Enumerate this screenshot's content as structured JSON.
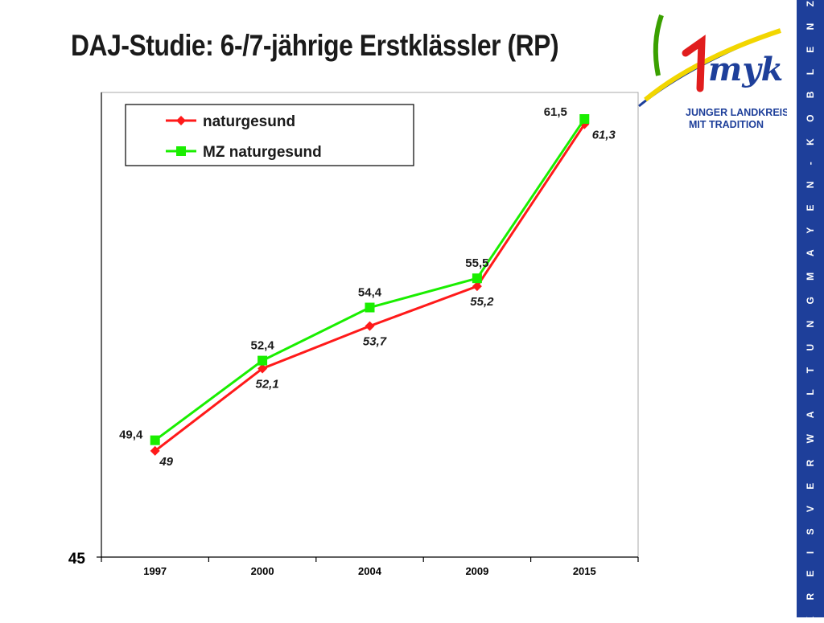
{
  "slide": {
    "title": "DAJ-Studie:  6-/7-jährige Erstklässler (RP)",
    "side_text": "K R E I S V E R W A L T U N G   M A Y E N - K O B L E N Z",
    "accent_color": "#1e3f9a"
  },
  "logo": {
    "line1": "JUNGER LANDKREIS",
    "line2": "MIT TRADITION",
    "wordmark": "myk"
  },
  "chart_data": {
    "type": "line",
    "categories": [
      "1997",
      "2000",
      "2004",
      "2009",
      "2015"
    ],
    "ylim": [
      45,
      62.5
    ],
    "y_tick_labels": [
      "45"
    ],
    "grid": false,
    "legend_position": "top-left",
    "series": [
      {
        "name": "naturgesund",
        "color": "#ff1a1a",
        "marker": "diamond",
        "values": [
          49,
          52.1,
          53.7,
          55.2,
          61.3
        ],
        "labels": [
          "49",
          "52,1",
          "53,7",
          "55,2",
          "61,3"
        ]
      },
      {
        "name": "MZ naturgesund",
        "color": "#1aee00",
        "marker": "square",
        "values": [
          49.4,
          52.4,
          54.4,
          55.5,
          61.5
        ],
        "labels": [
          "49,4",
          "52,4",
          "54,4",
          "55,5",
          "61,5"
        ]
      }
    ]
  }
}
